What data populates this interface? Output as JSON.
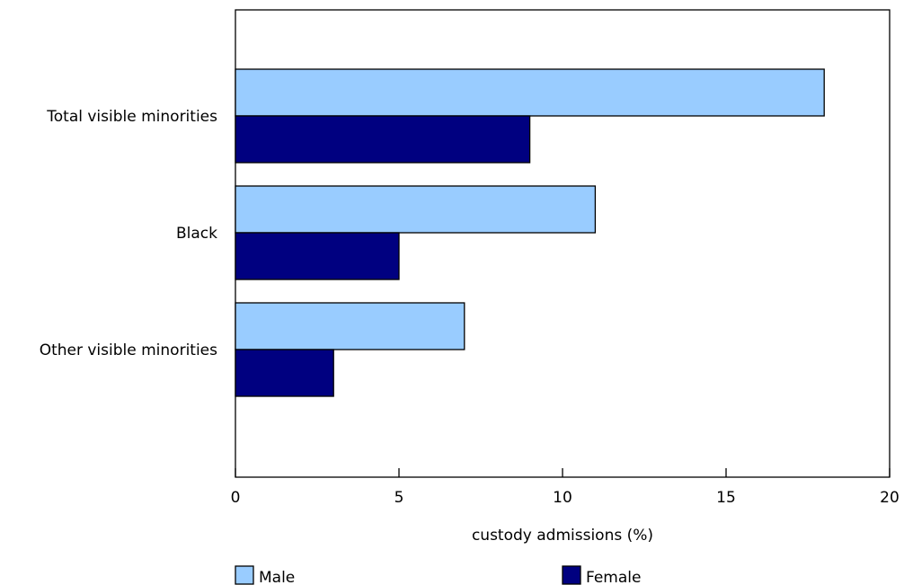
{
  "chart_data": {
    "type": "bar",
    "orientation": "horizontal",
    "categories": [
      "Total visible minorities",
      "Black",
      "Other visible minorities"
    ],
    "series": [
      {
        "name": "Male",
        "values": [
          18,
          11,
          7
        ],
        "color": "#99CCFF"
      },
      {
        "name": "Female",
        "values": [
          9,
          5,
          3
        ],
        "color": "#000080"
      }
    ],
    "title": "",
    "xlabel": "custody admissions (%)",
    "ylabel": "",
    "xlim": [
      0,
      20
    ],
    "xticks": [
      0,
      5,
      10,
      15,
      20
    ],
    "grid": false,
    "legend_position": "bottom"
  }
}
